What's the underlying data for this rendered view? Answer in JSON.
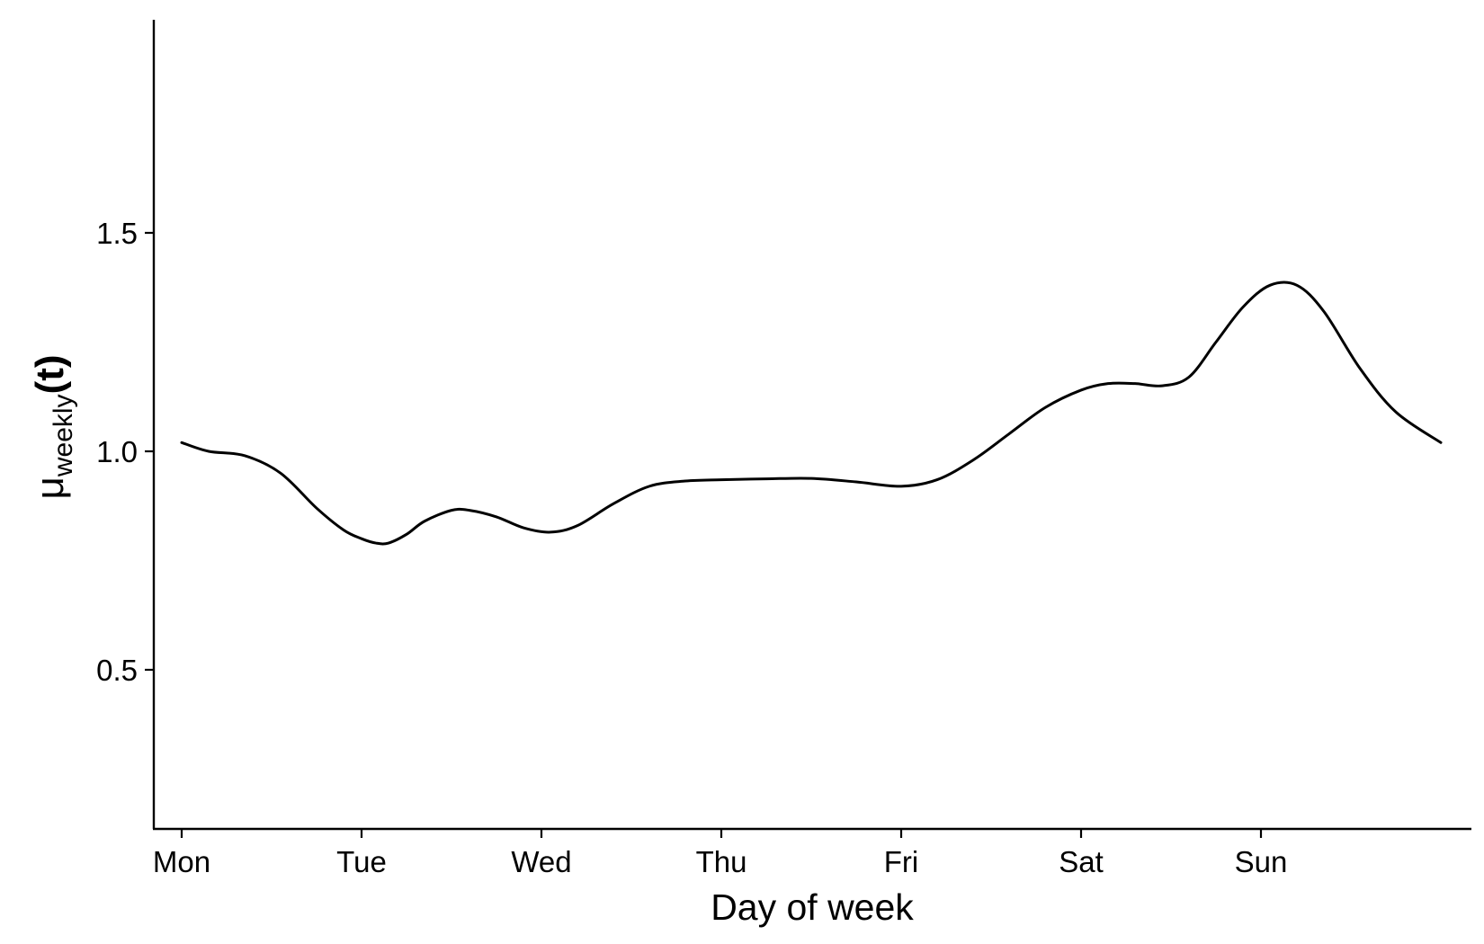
{
  "chart_data": {
    "type": "line",
    "title": "",
    "xlabel": "Day of week",
    "ylabel": {
      "base": "μ",
      "subscript": "weekly",
      "argument": "(t)"
    },
    "xlim": [
      0,
      7
    ],
    "ylim": [
      0.14,
      1.98
    ],
    "x_ticks": [
      {
        "value": 0,
        "label": "Mon"
      },
      {
        "value": 1,
        "label": "Tue"
      },
      {
        "value": 2,
        "label": "Wed"
      },
      {
        "value": 3,
        "label": "Thu"
      },
      {
        "value": 4,
        "label": "Fri"
      },
      {
        "value": 5,
        "label": "Sat"
      },
      {
        "value": 6,
        "label": "Sun"
      }
    ],
    "y_ticks": [
      {
        "value": 0.5,
        "label": "0.5"
      },
      {
        "value": 1.0,
        "label": "1.0"
      },
      {
        "value": 1.5,
        "label": "1.5"
      }
    ],
    "grid": false,
    "legend": "none",
    "line_color": "#000000",
    "series": [
      {
        "x": [
          0,
          0.15,
          0.35,
          0.55,
          0.75,
          0.9,
          1.0,
          1.08,
          1.15,
          1.25,
          1.35,
          1.5,
          1.6,
          1.75,
          1.9,
          2.05,
          2.2,
          2.4,
          2.6,
          2.8,
          3.0,
          3.25,
          3.5,
          3.75,
          4.0,
          4.2,
          4.4,
          4.6,
          4.8,
          5.0,
          5.15,
          5.3,
          5.45,
          5.6,
          5.75,
          5.9,
          6.05,
          6.2,
          6.35,
          6.55,
          6.75,
          7.0
        ],
        "y": [
          1.02,
          1.0,
          0.99,
          0.95,
          0.87,
          0.82,
          0.8,
          0.79,
          0.79,
          0.81,
          0.84,
          0.865,
          0.865,
          0.85,
          0.825,
          0.815,
          0.83,
          0.88,
          0.92,
          0.932,
          0.935,
          0.937,
          0.938,
          0.93,
          0.92,
          0.935,
          0.98,
          1.04,
          1.1,
          1.14,
          1.155,
          1.155,
          1.15,
          1.17,
          1.25,
          1.33,
          1.38,
          1.38,
          1.32,
          1.19,
          1.09,
          1.02
        ]
      }
    ]
  }
}
